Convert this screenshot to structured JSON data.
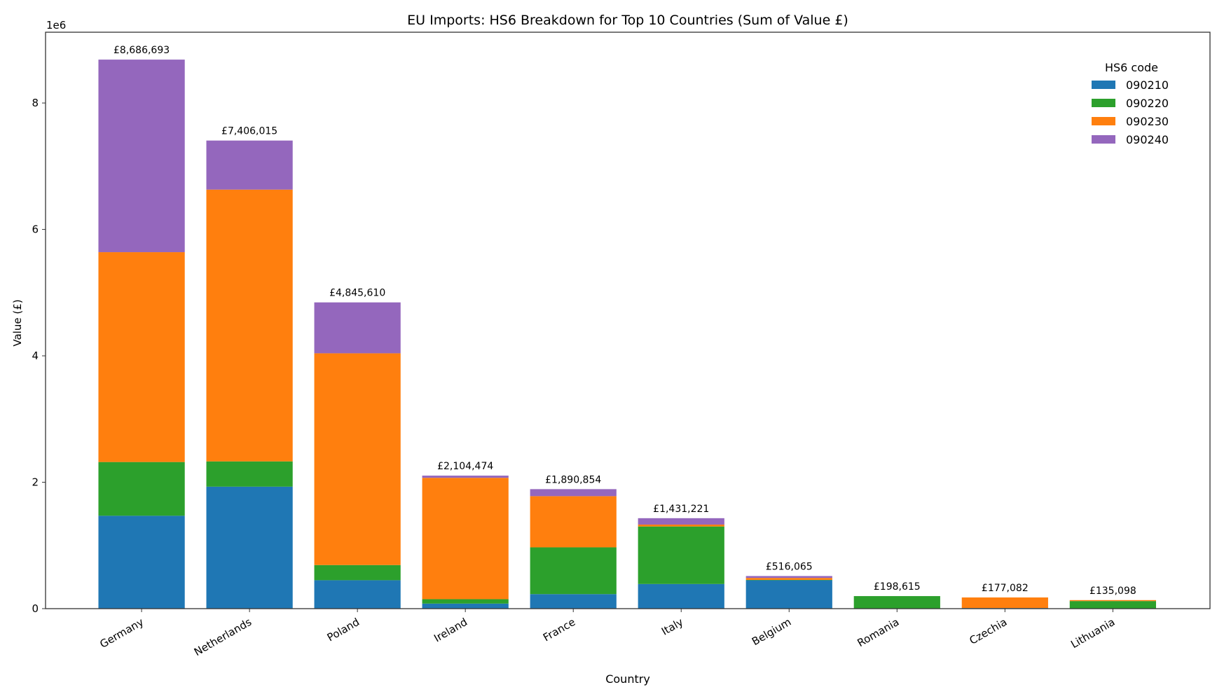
{
  "chart_data": {
    "type": "bar",
    "stacked": true,
    "title": "EU Imports: HS6 Breakdown for Top 10 Countries (Sum of Value £)",
    "xlabel": "Country",
    "ylabel": "Value (£)",
    "y_offset_label": "1e6",
    "ylim": [
      0,
      9120000
    ],
    "xlim": [
      -0.89,
      9.9
    ],
    "yticks": [
      0,
      2000000,
      4000000,
      6000000,
      8000000
    ],
    "ytick_labels": [
      "0",
      "2",
      "4",
      "6",
      "8"
    ],
    "grid": false,
    "categories": [
      "Germany",
      "Netherlands",
      "Poland",
      "Ireland",
      "France",
      "Italy",
      "Belgium",
      "Romania",
      "Czechia",
      "Lithuania"
    ],
    "legend": {
      "title": "HS6 code",
      "placement": "top-right"
    },
    "series": [
      {
        "name": "090210",
        "color": "#1f77b4",
        "values": [
          1470000,
          1930000,
          450000,
          80000,
          230000,
          390000,
          450000,
          5000,
          10000,
          0
        ]
      },
      {
        "name": "090220",
        "color": "#2ca02c",
        "values": [
          850000,
          400000,
          240000,
          70000,
          740000,
          910000,
          5000,
          193615,
          0,
          120000
        ]
      },
      {
        "name": "090230",
        "color": "#ff7f0e",
        "values": [
          3320000,
          4300000,
          3350000,
          1920000,
          810000,
          30000,
          31065,
          0,
          167082,
          15098
        ]
      },
      {
        "name": "090240",
        "color": "#9467bd",
        "values": [
          3046693,
          776015,
          805610,
          34474,
          110854,
          101221,
          30000,
          0,
          0,
          0
        ]
      }
    ],
    "totals": [
      8686693,
      7406015,
      4845610,
      2104474,
      1890854,
      1431221,
      516065,
      198615,
      177082,
      135098
    ],
    "total_labels": [
      "£8,686,693",
      "£7,406,015",
      "£4,845,610",
      "£2,104,474",
      "£1,890,854",
      "£1,431,221",
      "£516,065",
      "£198,615",
      "£177,082",
      "£135,098"
    ]
  }
}
